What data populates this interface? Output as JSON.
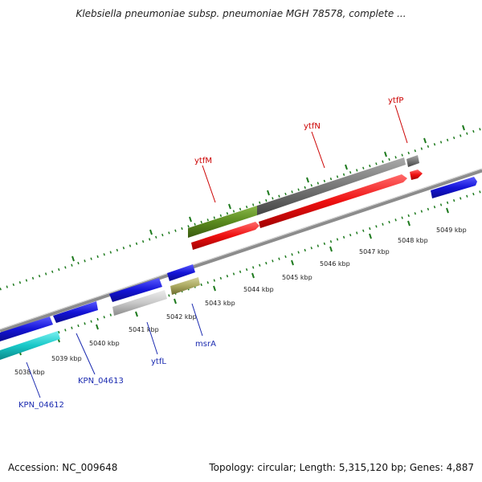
{
  "title": "Klebsiella pneumoniae subsp. pneumoniae MGH 78578, complete ...",
  "footer": {
    "accession": "Accession: NC_009648",
    "summary": "Topology: circular; Length: 5,315,120 bp; Genes: 4,887"
  },
  "colors": {
    "backbone": "#8c8c8c",
    "tick": "#1e7a1e",
    "red_label": "#cc0000",
    "blue_label": "#1a2ab0"
  },
  "scale_labels": [
    {
      "kbp": 5038,
      "text": "5038 kbp"
    },
    {
      "kbp": 5039,
      "text": "5039 kbp"
    },
    {
      "kbp": 5040,
      "text": "5040 kbp"
    },
    {
      "kbp": 5041,
      "text": "5041 kbp"
    },
    {
      "kbp": 5042,
      "text": "5042 kbp"
    },
    {
      "kbp": 5043,
      "text": "5043 kbp"
    },
    {
      "kbp": 5044,
      "text": "5044 kbp"
    },
    {
      "kbp": 5045,
      "text": "5045 kbp"
    },
    {
      "kbp": 5046,
      "text": "5046 kbp"
    },
    {
      "kbp": 5047,
      "text": "5047 kbp"
    },
    {
      "kbp": 5048,
      "text": "5048 kbp"
    },
    {
      "kbp": 5049,
      "text": "5049 kbp"
    }
  ],
  "feature_labels": {
    "ytfM": "ytfM",
    "ytfN": "ytfN",
    "ytfP": "ytfP",
    "msrA": "msrA",
    "ytfL": "ytfL",
    "KPN_04613": "KPN_04613",
    "KPN_04612": "KPN_04612"
  },
  "feature_colors": {
    "cds": "#1414d8",
    "gene_teal": "#18c8c8",
    "gene_green": "#5a8a1e",
    "gene_grey": "#777777",
    "gene_lightgrey": "#c8c8c8",
    "gene_olive": "#aaa860",
    "cds_red": "#ee1010"
  }
}
